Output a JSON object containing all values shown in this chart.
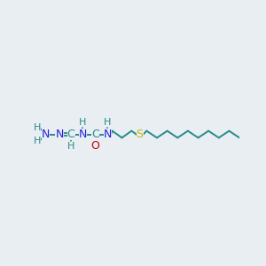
{
  "background_color": "#e8eef2",
  "atom_colors": {
    "C": "#2a8a8a",
    "N": "#2020e0",
    "O": "#cc0000",
    "S": "#c8b800",
    "H": "#2a8a8a"
  },
  "bond_color": "#2a8a8a",
  "figsize": [
    3.0,
    3.0
  ],
  "dpi": 100
}
